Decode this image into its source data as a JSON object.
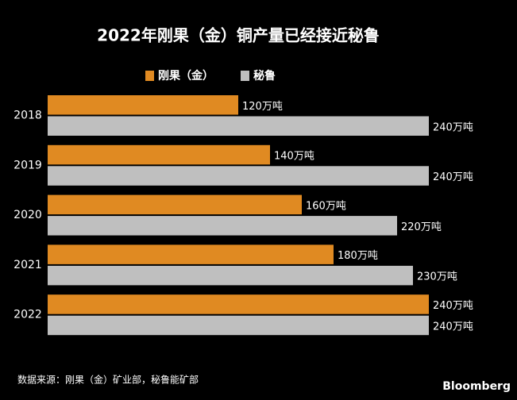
{
  "chart_data": {
    "type": "bar",
    "orientation": "horizontal",
    "title": "2022年刚果（金）铜产量已经接近秘鲁",
    "categories": [
      "2018",
      "2019",
      "2020",
      "2021",
      "2022"
    ],
    "series": [
      {
        "name": "刚果（金）",
        "color": "#e08a22",
        "values": [
          120,
          140,
          160,
          180,
          240
        ],
        "value_labels": [
          "120万吨",
          "140万吨",
          "160万吨",
          "180万吨",
          "240万吨"
        ]
      },
      {
        "name": "秘鲁",
        "color": "#bfbfbf",
        "values": [
          240,
          240,
          220,
          230,
          240
        ],
        "value_labels": [
          "240万吨",
          "240万吨",
          "220万吨",
          "230万吨",
          "240万吨"
        ]
      }
    ],
    "source": "数据来源：刚果（金）矿业部，秘鲁能矿部",
    "brand": "Bloomberg"
  }
}
